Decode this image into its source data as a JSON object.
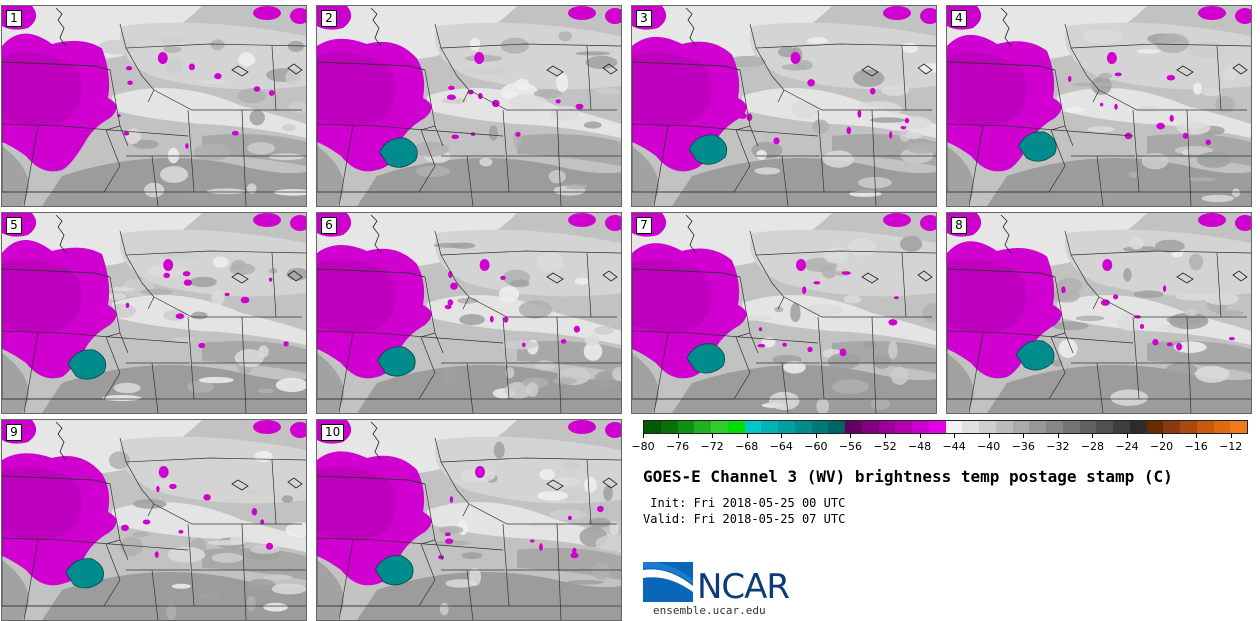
{
  "panels": [
    {
      "label": "1",
      "variant": 0
    },
    {
      "label": "2",
      "variant": 1
    },
    {
      "label": "3",
      "variant": 2
    },
    {
      "label": "4",
      "variant": 3
    },
    {
      "label": "5",
      "variant": 4
    },
    {
      "label": "6",
      "variant": 5
    },
    {
      "label": "7",
      "variant": 6
    },
    {
      "label": "8",
      "variant": 7
    },
    {
      "label": "9",
      "variant": 8
    },
    {
      "label": "10",
      "variant": 9
    }
  ],
  "colorbar": {
    "min": -80,
    "max": -10,
    "tick_labels": [
      "-80",
      "-76",
      "-72",
      "-68",
      "-64",
      "-60",
      "-56",
      "-52",
      "-48",
      "-44",
      "-40",
      "-36",
      "-32",
      "-28",
      "-24",
      "-20",
      "-16",
      "-12"
    ],
    "colors": [
      "#005a00",
      "#087008",
      "#109010",
      "#20b020",
      "#30cc30",
      "#00dd00",
      "#00c8c8",
      "#00b4b4",
      "#00a0a0",
      "#008c8c",
      "#007878",
      "#006464",
      "#600060",
      "#800080",
      "#9c009c",
      "#b400b4",
      "#cc00cc",
      "#e400e4",
      "#f2f2f2",
      "#e0e0e0",
      "#cecece",
      "#bcbcbc",
      "#aaaaaa",
      "#989898",
      "#868686",
      "#747474",
      "#626262",
      "#505050",
      "#3e3e3e",
      "#2c2c2c",
      "#6a2a00",
      "#8a3a10",
      "#aa4a10",
      "#c85a10",
      "#e06a10",
      "#f07a18"
    ]
  },
  "title": "GOES-E Channel 3 (WV) brightness temp postage stamp (C)",
  "init": " Init: Fri 2018-05-25 00 UTC",
  "valid": "Valid: Fri 2018-05-25 07 UTC",
  "logo": {
    "word": "NCAR",
    "site": "ensemble.ucar.edu"
  }
}
